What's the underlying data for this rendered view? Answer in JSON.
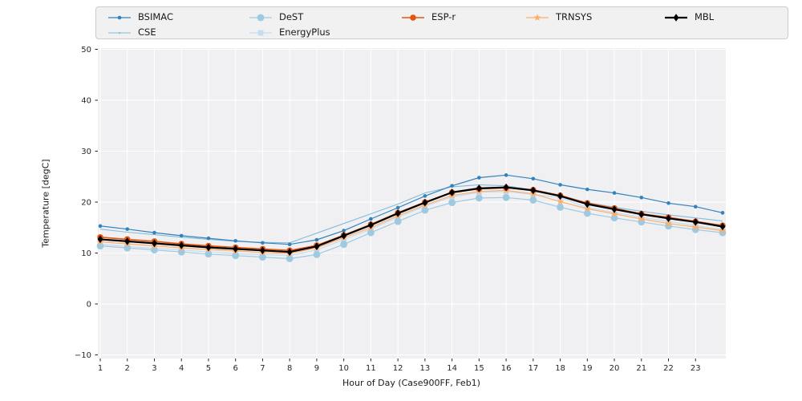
{
  "figure": {
    "background": "#ffffff",
    "plot_background": "#f0f0f2",
    "grid_color": "#ffffff",
    "tick_color": "#262626"
  },
  "chart_data": {
    "type": "line",
    "title": "",
    "xlabel": "Hour of Day (Case900FF, Feb1)",
    "ylabel": "Temperature [degC]",
    "xlim": [
      1,
      24
    ],
    "ylim": [
      -10,
      50
    ],
    "xticks": [
      1,
      2,
      3,
      4,
      5,
      6,
      7,
      8,
      9,
      10,
      11,
      12,
      13,
      14,
      15,
      16,
      17,
      18,
      19,
      20,
      21,
      22,
      23
    ],
    "yticks": [
      -10,
      0,
      10,
      20,
      30,
      40,
      50
    ],
    "grid": true,
    "legend_position": "top-horizontal",
    "x": [
      1,
      2,
      3,
      4,
      5,
      6,
      7,
      8,
      9,
      10,
      11,
      12,
      13,
      14,
      15,
      16,
      17,
      18,
      19,
      20,
      21,
      22,
      23,
      24
    ],
    "series": [
      {
        "name": "BSIMAC",
        "color": "#3182bd",
        "marker": "dot",
        "linewidth": 1.2,
        "values": [
          15.3,
          14.7,
          14.0,
          13.4,
          12.9,
          12.4,
          12.0,
          11.7,
          12.6,
          14.4,
          16.7,
          18.9,
          21.2,
          23.2,
          24.8,
          25.3,
          24.6,
          23.4,
          22.5,
          21.8,
          20.9,
          19.8,
          19.1,
          17.9
        ]
      },
      {
        "name": "CSE",
        "color": "#85bcdb",
        "marker": "point",
        "linewidth": 1.1,
        "values": [
          14.7,
          14.1,
          13.6,
          13.1,
          12.7,
          12.3,
          12.1,
          12.0,
          13.9,
          15.8,
          17.7,
          19.6,
          21.8,
          23.0,
          23.4,
          23.2,
          22.4,
          21.2,
          19.9,
          19.0,
          18.2,
          17.5,
          16.9,
          16.3
        ]
      },
      {
        "name": "DeST",
        "color": "#9ecae1",
        "marker": "circle",
        "linewidth": 1.2,
        "values": [
          11.4,
          11.0,
          10.6,
          10.2,
          9.8,
          9.5,
          9.2,
          8.9,
          9.7,
          11.7,
          14.0,
          16.2,
          18.4,
          19.9,
          20.8,
          20.9,
          20.4,
          19.0,
          17.8,
          16.9,
          16.1,
          15.3,
          14.6,
          14.0
        ]
      },
      {
        "name": "EnergyPlus",
        "color": "#c6dbef",
        "marker": "square",
        "linewidth": 1.2,
        "values": [
          11.7,
          11.3,
          10.9,
          10.6,
          10.2,
          9.9,
          9.7,
          9.5,
          10.6,
          12.6,
          14.7,
          17.0,
          19.2,
          21.0,
          21.9,
          22.1,
          21.5,
          20.9,
          18.9,
          18.0,
          17.0,
          16.2,
          15.4,
          14.6
        ]
      },
      {
        "name": "ESP-r",
        "color": "#e6550d",
        "marker": "circle-sm",
        "linewidth": 1.6,
        "values": [
          13.1,
          12.7,
          12.3,
          11.8,
          11.4,
          11.1,
          10.8,
          10.5,
          11.5,
          13.5,
          15.6,
          17.9,
          20.0,
          21.9,
          22.6,
          22.8,
          22.4,
          21.3,
          19.8,
          18.8,
          17.7,
          17.0,
          16.2,
          15.4
        ]
      },
      {
        "name": "TRNSYS",
        "color": "#fdae6b",
        "marker": "star",
        "linewidth": 1.2,
        "values": [
          12.2,
          11.8,
          11.4,
          11.0,
          10.7,
          10.4,
          10.1,
          9.9,
          11.0,
          13.0,
          15.0,
          17.3,
          19.4,
          21.3,
          22.1,
          22.3,
          21.6,
          20.1,
          18.7,
          17.7,
          16.7,
          15.8,
          15.1,
          14.4
        ]
      },
      {
        "name": "MBL",
        "color": "#000000",
        "marker": "diamond",
        "linewidth": 2.2,
        "values": [
          12.7,
          12.3,
          11.9,
          11.5,
          11.1,
          10.8,
          10.5,
          10.2,
          11.3,
          13.4,
          15.5,
          17.8,
          19.9,
          21.9,
          22.7,
          22.9,
          22.3,
          21.2,
          19.6,
          18.6,
          17.6,
          16.8,
          16.1,
          15.2
        ]
      }
    ]
  }
}
